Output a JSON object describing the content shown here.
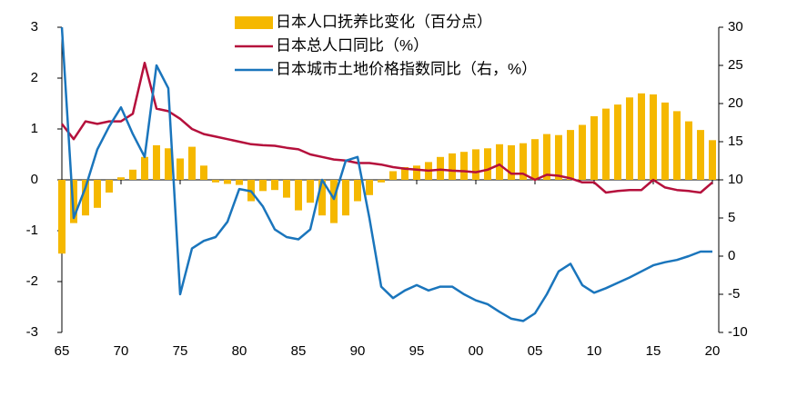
{
  "chart_data": {
    "type": "combo",
    "categories": [
      "65",
      null,
      null,
      null,
      null,
      "70",
      null,
      null,
      null,
      null,
      "75",
      null,
      null,
      null,
      null,
      "80",
      null,
      null,
      null,
      null,
      "85",
      null,
      null,
      null,
      null,
      "90",
      null,
      null,
      null,
      null,
      "95",
      null,
      null,
      null,
      null,
      "00",
      null,
      null,
      null,
      null,
      "05",
      null,
      null,
      null,
      null,
      "10",
      null,
      null,
      null,
      null,
      "15",
      null,
      null,
      null,
      null,
      "20"
    ],
    "series": [
      {
        "name": "日本人口抚养比变化（百分点）",
        "type": "bar",
        "color": "#f5b800",
        "values": [
          -1.45,
          -0.85,
          -0.7,
          -0.55,
          -0.25,
          0.05,
          0.2,
          0.45,
          0.68,
          0.62,
          0.42,
          0.65,
          0.28,
          -0.05,
          -0.08,
          -0.1,
          -0.42,
          -0.22,
          -0.2,
          -0.35,
          -0.6,
          -0.45,
          -0.7,
          -0.85,
          -0.7,
          -0.42,
          -0.3,
          -0.05,
          0.17,
          0.25,
          0.28,
          0.35,
          0.45,
          0.52,
          0.55,
          0.6,
          0.62,
          0.7,
          0.68,
          0.72,
          0.8,
          0.9,
          0.88,
          0.98,
          1.08,
          1.25,
          1.4,
          1.48,
          1.62,
          1.7,
          1.68,
          1.52,
          1.35,
          1.15,
          0.98,
          0.78
        ]
      },
      {
        "name": "日本总人口同比（%）",
        "type": "line",
        "color": "#b5103c",
        "values": [
          1.1,
          0.8,
          1.15,
          1.1,
          1.15,
          1.15,
          1.3,
          2.3,
          1.4,
          1.35,
          1.2,
          1.0,
          0.9,
          0.85,
          0.8,
          0.75,
          0.7,
          0.68,
          0.67,
          0.63,
          0.6,
          0.5,
          0.45,
          0.4,
          0.38,
          0.33,
          0.33,
          0.3,
          0.25,
          0.22,
          0.2,
          0.18,
          0.2,
          0.18,
          0.17,
          0.15,
          0.2,
          0.3,
          0.12,
          0.12,
          0.0,
          0.1,
          0.08,
          0.03,
          -0.05,
          -0.05,
          -0.25,
          -0.22,
          -0.2,
          -0.2,
          0.0,
          -0.15,
          -0.2,
          -0.22,
          -0.25,
          -0.05
        ]
      },
      {
        "name": "日本城市土地价格指数同比（右，%）",
        "type": "line",
        "axis": "y2",
        "color": "#1a75bc",
        "values": [
          30,
          5,
          9,
          14,
          17,
          19.5,
          16,
          13,
          25,
          22,
          -5,
          1,
          2,
          2.5,
          4.5,
          8.8,
          8.5,
          6.5,
          3.5,
          2.5,
          2.2,
          3.5,
          10,
          7.5,
          12.5,
          13,
          5,
          -4,
          -5.5,
          -4.5,
          -3.8,
          -4.5,
          -4,
          -4,
          -5,
          -5.8,
          -6.3,
          -7.3,
          -8.2,
          -8.5,
          -7.5,
          -5,
          -2,
          -1,
          -3.8,
          -4.8,
          -4.2,
          -3.5,
          -2.8,
          -2,
          -1.2,
          -0.8,
          -0.5,
          0,
          0.6,
          0.6
        ]
      }
    ],
    "ylim": [
      -3,
      3
    ],
    "yticks": [
      -3,
      -2,
      -1,
      0,
      1,
      2,
      3
    ],
    "y2lim": [
      -10,
      30
    ],
    "y2ticks": [
      -10,
      -5,
      0,
      5,
      10,
      15,
      20,
      25,
      30
    ],
    "grid": false
  }
}
